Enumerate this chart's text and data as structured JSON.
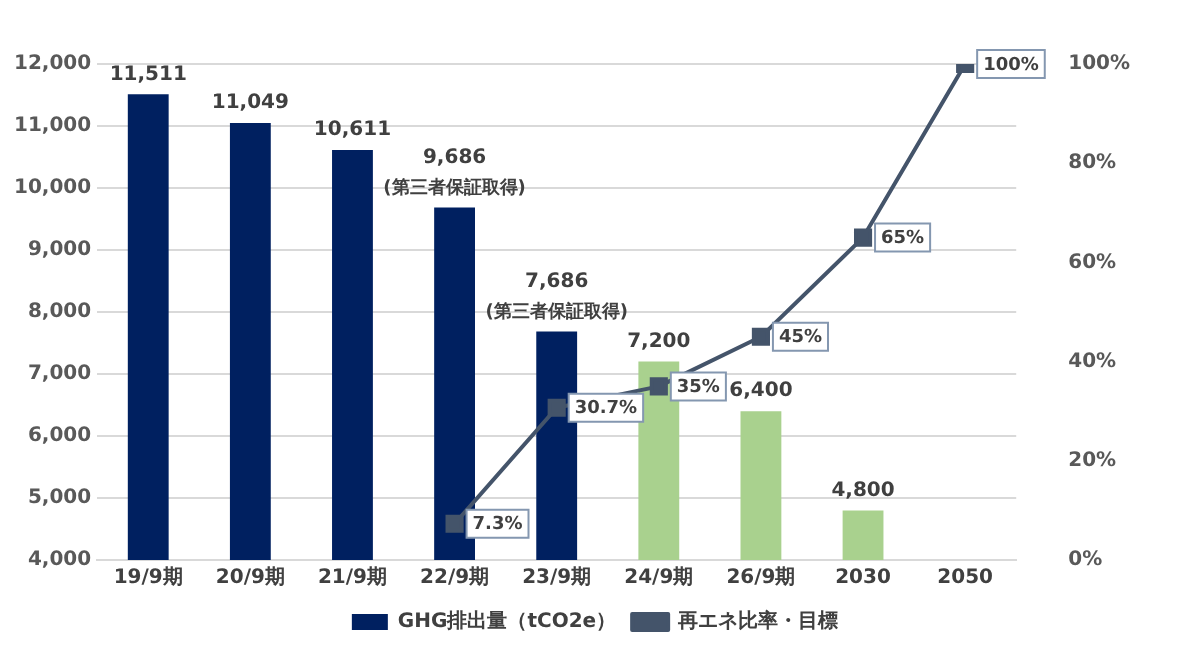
{
  "chart_data": {
    "type": "bar",
    "categories": [
      "19/9期",
      "20/9期",
      "21/9期",
      "22/9期",
      "23/9期",
      "24/9期",
      "26/9期",
      "2030",
      "2050"
    ],
    "series": [
      {
        "name": "GHG排出量（tCO2e）",
        "colors": [
          "#002060",
          "#002060",
          "#002060",
          "#002060",
          "#002060",
          "#a9d18e",
          "#a9d18e",
          "#a9d18e",
          "#a9d18e"
        ],
        "values": [
          11511,
          11049,
          10611,
          9686,
          7686,
          7200,
          6400,
          4800,
          null
        ],
        "value_labels": [
          "11,511",
          "11,049",
          "10,611",
          "9,686",
          "7,686",
          "7,200",
          "6,400",
          "4,800",
          null
        ]
      },
      {
        "name": "再エネ比率・目標",
        "type": "line",
        "axis": "y2",
        "color": "#44546a",
        "values": [
          null,
          null,
          null,
          7.3,
          30.7,
          35,
          45,
          65,
          100
        ],
        "value_labels": [
          null,
          null,
          null,
          "7.3%",
          "30.7%",
          "35%",
          "45%",
          "65%",
          "100%"
        ]
      }
    ],
    "annotations": [
      {
        "text": "(第三者保証取得)",
        "x": "22/9期",
        "y": 9686
      },
      {
        "text": "(第三者保証取得)",
        "x": "23/9期",
        "y": 7686
      }
    ],
    "ylim": [
      4000,
      12000
    ],
    "yticks": [
      {
        "value": 4000,
        "label": "4,000"
      },
      {
        "value": 5000,
        "label": "5,000"
      },
      {
        "value": 6000,
        "label": "6,000"
      },
      {
        "value": 7000,
        "label": "7,000"
      },
      {
        "value": 8000,
        "label": "8,000"
      },
      {
        "value": 9000,
        "label": "9,000"
      },
      {
        "value": 10000,
        "label": "10,000"
      },
      {
        "value": 11000,
        "label": "11,000"
      },
      {
        "value": 12000,
        "label": "12,000"
      }
    ],
    "y2lim": [
      0,
      100
    ],
    "y2ticks": [
      {
        "value": 0,
        "label": "0%"
      },
      {
        "value": 20,
        "label": "20%"
      },
      {
        "value": 40,
        "label": "40%"
      },
      {
        "value": 60,
        "label": "60%"
      },
      {
        "value": 80,
        "label": "80%"
      },
      {
        "value": 100,
        "label": "100%"
      }
    ],
    "grid": "y",
    "legend": "bottom",
    "marker": "square",
    "line_style": "solid"
  }
}
